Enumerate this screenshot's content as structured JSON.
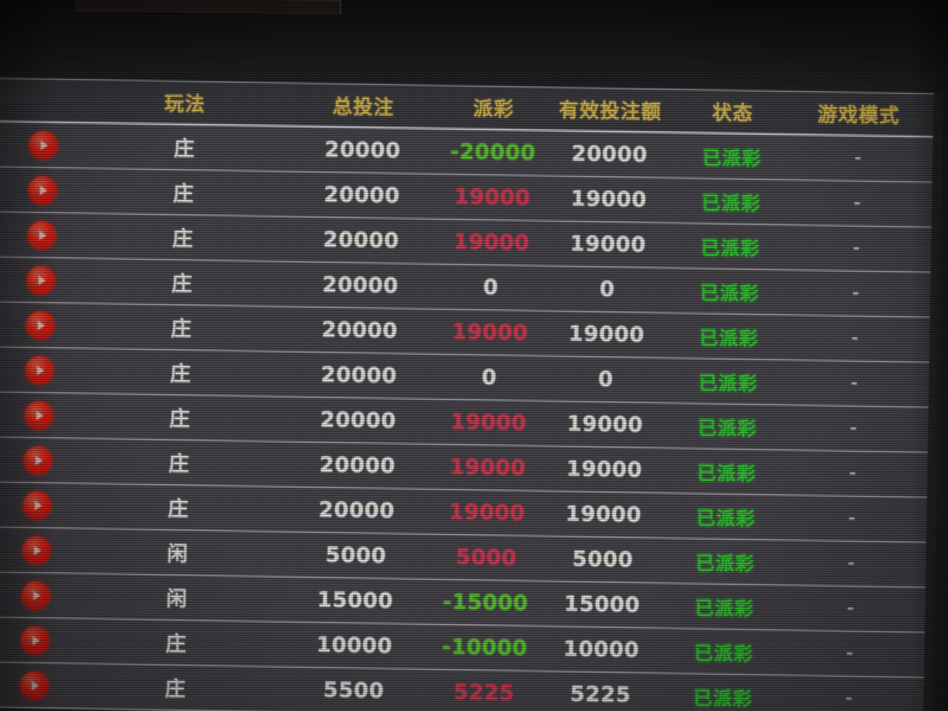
{
  "table": {
    "columns": [
      "玩法",
      "总投注",
      "派彩",
      "有效投注额",
      "状态",
      "游戏模式"
    ],
    "rows": [
      {
        "wanfa": "庄",
        "total": "20000",
        "payout": "-20000",
        "payout_color": "green",
        "valid": "20000",
        "status": "已派彩",
        "mode": "-"
      },
      {
        "wanfa": "庄",
        "total": "20000",
        "payout": "19000",
        "payout_color": "red",
        "valid": "19000",
        "status": "已派彩",
        "mode": "-"
      },
      {
        "wanfa": "庄",
        "total": "20000",
        "payout": "19000",
        "payout_color": "red",
        "valid": "19000",
        "status": "已派彩",
        "mode": "-"
      },
      {
        "wanfa": "庄",
        "total": "20000",
        "payout": "0",
        "payout_color": "white",
        "valid": "0",
        "status": "已派彩",
        "mode": "-"
      },
      {
        "wanfa": "庄",
        "total": "20000",
        "payout": "19000",
        "payout_color": "red",
        "valid": "19000",
        "status": "已派彩",
        "mode": "-"
      },
      {
        "wanfa": "庄",
        "total": "20000",
        "payout": "0",
        "payout_color": "white",
        "valid": "0",
        "status": "已派彩",
        "mode": "-"
      },
      {
        "wanfa": "庄",
        "total": "20000",
        "payout": "19000",
        "payout_color": "red",
        "valid": "19000",
        "status": "已派彩",
        "mode": "-"
      },
      {
        "wanfa": "庄",
        "total": "20000",
        "payout": "19000",
        "payout_color": "red",
        "valid": "19000",
        "status": "已派彩",
        "mode": "-"
      },
      {
        "wanfa": "庄",
        "total": "20000",
        "payout": "19000",
        "payout_color": "red",
        "valid": "19000",
        "status": "已派彩",
        "mode": "-"
      },
      {
        "wanfa": "闲",
        "total": "5000",
        "payout": "5000",
        "payout_color": "red",
        "valid": "5000",
        "status": "已派彩",
        "mode": "-"
      },
      {
        "wanfa": "闲",
        "total": "15000",
        "payout": "-15000",
        "payout_color": "green",
        "valid": "15000",
        "status": "已派彩",
        "mode": "-"
      },
      {
        "wanfa": "庄",
        "total": "10000",
        "payout": "-10000",
        "payout_color": "green",
        "valid": "10000",
        "status": "已派彩",
        "mode": "-"
      },
      {
        "wanfa": "庄",
        "total": "5500",
        "payout": "5225",
        "payout_color": "red",
        "valid": "5225",
        "status": "已派彩",
        "mode": "-"
      }
    ]
  },
  "colors": {
    "header_gold": "#d9b94f",
    "value_white": "#ece9e4",
    "payout_win_red": "#d63a52",
    "payout_loss_green": "#5dc832",
    "status_green": "#2ecc2e",
    "play_button_red": "#ef2417",
    "row_background": "#46444a"
  }
}
